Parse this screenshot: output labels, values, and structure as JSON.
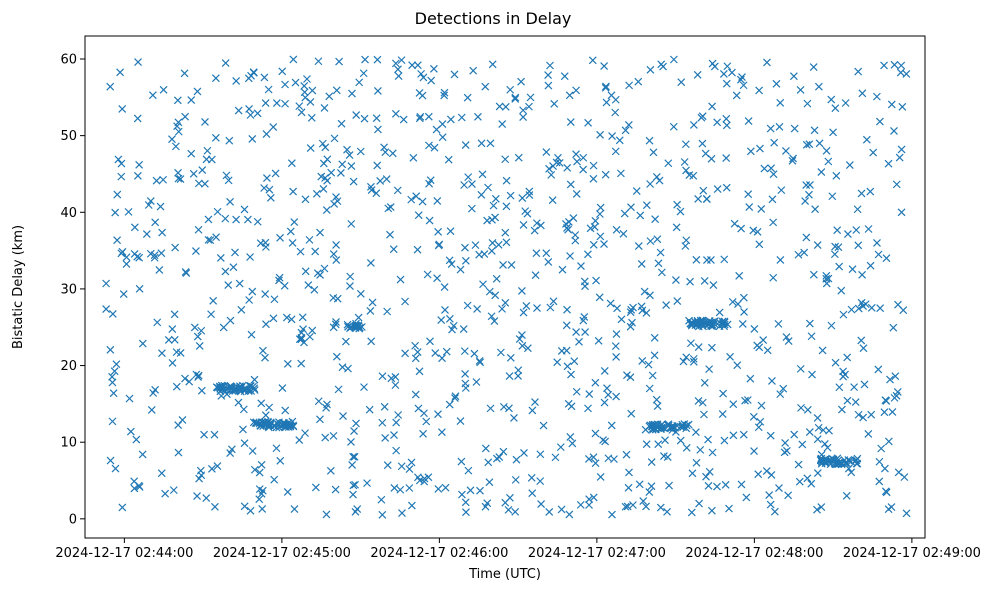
{
  "chart_data": {
    "type": "scatter",
    "title": "Detections in Delay",
    "xlabel": "Time (UTC)",
    "ylabel": "Bistatic Delay (km)",
    "x_ticks": [
      "2024-12-17 02:44:00",
      "2024-12-17 02:45:00",
      "2024-12-17 02:46:00",
      "2024-12-17 02:47:00",
      "2024-12-17 02:48:00",
      "2024-12-17 02:49:00"
    ],
    "y_ticks": [
      0,
      10,
      20,
      30,
      40,
      50,
      60
    ],
    "xlim": [
      "2024-12-17 02:43:45",
      "2024-12-17 02:49:05"
    ],
    "ylim": [
      -2.5,
      63
    ],
    "grid": false,
    "marker": "x",
    "color": "#1f77b4",
    "series": [
      {
        "time_range": [
          "2024-12-17 02:43:53",
          "2024-12-17 02:48:58"
        ],
        "points_approx": 1300,
        "clusters": [
          {
            "start": "2024-12-17 02:44:35",
            "end": "2024-12-17 02:44:50",
            "delay_km": 17.0
          },
          {
            "start": "2024-12-17 02:44:50",
            "end": "2024-12-17 02:45:05",
            "delay_km": 12.3
          },
          {
            "start": "2024-12-17 02:45:25",
            "end": "2024-12-17 02:45:30",
            "delay_km": 25.0
          },
          {
            "start": "2024-12-17 02:47:20",
            "end": "2024-12-17 02:47:35",
            "delay_km": 12.0
          },
          {
            "start": "2024-12-17 02:47:35",
            "end": "2024-12-17 02:47:50",
            "delay_km": 25.5
          },
          {
            "start": "2024-12-17 02:48:25",
            "end": "2024-12-17 02:48:40",
            "delay_km": 7.5
          }
        ]
      }
    ]
  }
}
